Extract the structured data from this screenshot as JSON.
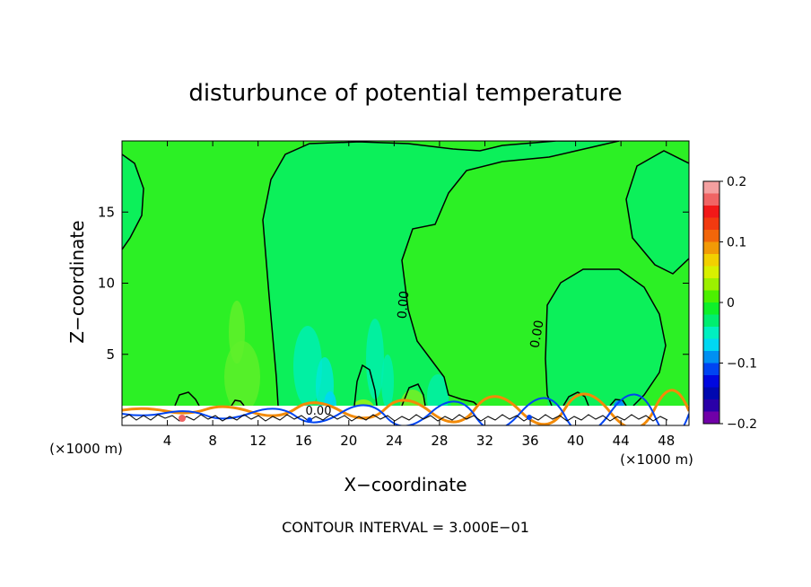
{
  "chart_data": {
    "type": "heatmap",
    "title": "disturbunce of potential temperature",
    "xlabel": "X−coordinate",
    "ylabel": "Z−coordinate",
    "x_unit_left": "(×1000 m)",
    "x_unit_right": "(×1000 m)",
    "xlim": [
      0,
      50
    ],
    "ylim": [
      0,
      20
    ],
    "x_ticks": [
      4,
      8,
      12,
      16,
      20,
      24,
      28,
      32,
      36,
      40,
      44,
      48
    ],
    "y_ticks": [
      5,
      10,
      15
    ],
    "contour_labels": [
      "0.00",
      "0.00",
      "0.00"
    ],
    "footer": "CONTOUR INTERVAL = 3.000E−01",
    "colorbar": {
      "ticks": [
        "0.2",
        "0.1",
        "0",
        "−0.1",
        "−0.2"
      ],
      "range": [
        -0.2,
        0.2
      ],
      "colors": [
        "#f4a0a0",
        "#f06464",
        "#f21818",
        "#f23a10",
        "#f2660a",
        "#f29a06",
        "#f2d000",
        "#d8f000",
        "#9cf000",
        "#4cf000",
        "#0ef02a",
        "#00ee70",
        "#00f0c0",
        "#00d8f2",
        "#0090f2",
        "#0044f2",
        "#0008e0",
        "#0008b0",
        "#2a00a8",
        "#7000a8"
      ]
    },
    "field_colors": {
      "background": "#2cf025",
      "near_zero_negative": "#0cf05a",
      "slightly_negative": "#00f0b0",
      "slightly_positive": "#60f02a",
      "warm": "#d8f000"
    }
  }
}
